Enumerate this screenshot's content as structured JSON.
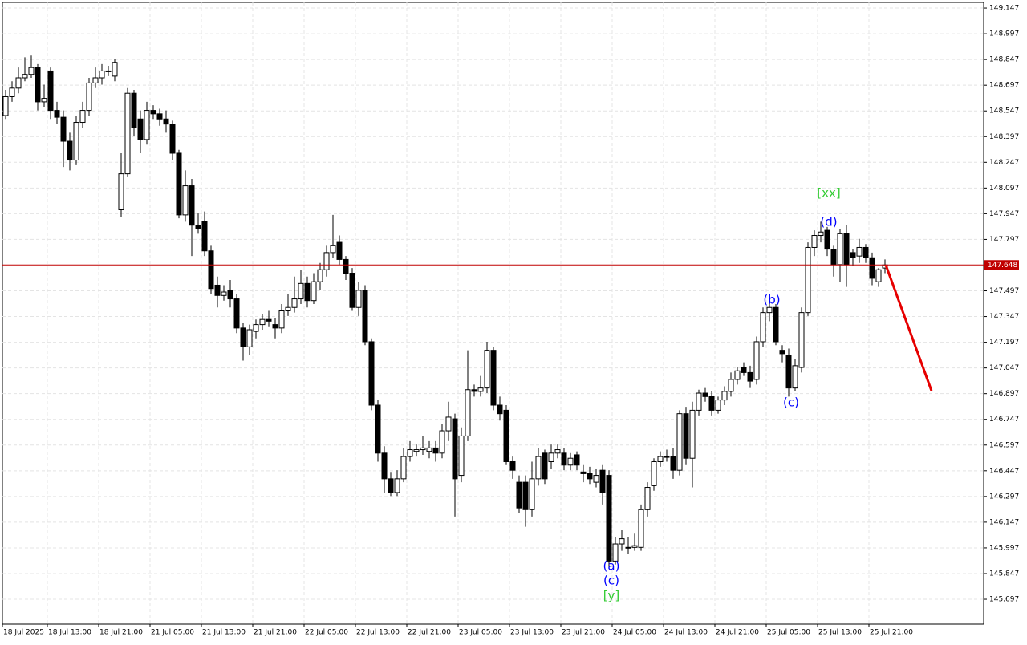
{
  "chart_data": {
    "type": "candlestick",
    "categories": [
      "18 Jul 2025",
      null,
      null,
      null,
      null,
      null,
      null,
      "18 Jul 13:00",
      null,
      null,
      null,
      null,
      null,
      null,
      null,
      "18 Jul 21:00",
      null,
      null,
      null,
      null,
      null,
      null,
      null,
      "21 Jul 05:00",
      null,
      null,
      null,
      null,
      null,
      null,
      null,
      "21 Jul 13:00",
      null,
      null,
      null,
      null,
      null,
      null,
      null,
      "21 Jul 21:00",
      null,
      null,
      null,
      null,
      null,
      null,
      null,
      "22 Jul 05:00",
      null,
      null,
      null,
      null,
      null,
      null,
      null,
      "22 Jul 13:00",
      null,
      null,
      null,
      null,
      null,
      null,
      null,
      "22 Jul 21:00",
      null,
      null,
      null,
      null,
      null,
      null,
      null,
      "23 Jul 05:00",
      null,
      null,
      null,
      null,
      null,
      null,
      null,
      "23 Jul 13:00",
      null,
      null,
      null,
      null,
      null,
      null,
      null,
      "23 Jul 21:00",
      null,
      null,
      null,
      null,
      null,
      null,
      null,
      "24 Jul 05:00",
      null,
      null,
      null,
      null,
      null,
      null,
      null,
      "24 Jul 13:00",
      null,
      null,
      null,
      null,
      null,
      null,
      null,
      "24 Jul 21:00",
      null,
      null,
      null,
      null,
      null,
      null,
      null,
      "25 Jul 05:00",
      null,
      null,
      null,
      null,
      null,
      null,
      null,
      "25 Jul 13:00",
      null,
      null,
      null,
      null,
      null,
      null,
      null,
      "25 Jul 21:00",
      null,
      null
    ],
    "open": [
      148.52,
      148.63,
      148.68,
      148.74,
      148.76,
      148.8,
      148.6,
      148.78,
      148.55,
      148.51,
      148.37,
      148.26,
      148.48,
      148.55,
      148.71,
      148.74,
      148.78,
      148.75,
      147.97,
      148.18,
      148.65,
      148.5,
      148.38,
      148.55,
      148.53,
      148.5,
      148.47,
      148.3,
      147.94,
      148.11,
      147.88,
      147.9,
      147.73,
      147.53,
      147.47,
      147.5,
      147.45,
      147.28,
      147.17,
      147.26,
      147.3,
      147.33,
      147.3,
      147.28,
      147.38,
      147.4,
      147.45,
      147.54,
      147.44,
      147.55,
      147.62,
      147.72,
      147.78,
      147.68,
      147.6,
      147.4,
      147.5,
      147.2,
      146.83,
      146.55,
      146.4,
      146.32,
      146.4,
      146.53,
      146.56,
      146.57,
      146.56,
      146.58,
      146.55,
      146.68,
      146.75,
      146.42,
      146.65,
      146.92,
      146.91,
      146.93,
      147.15,
      146.83,
      146.8,
      146.5,
      146.38,
      146.38,
      146.22,
      146.4,
      146.55,
      146.5,
      146.55,
      146.55,
      146.48,
      146.54,
      146.44,
      146.43,
      146.38,
      146.45,
      146.42,
      145.92,
      146.02,
      146.0,
      146.0,
      146.0,
      146.22,
      146.36,
      146.5,
      146.53,
      146.53,
      146.45,
      146.78,
      146.52,
      146.8,
      146.9,
      146.88,
      146.8,
      146.86,
      146.91,
      146.98,
      147.05,
      147.02,
      146.98,
      147.2,
      147.37,
      147.4,
      147.15,
      147.12,
      146.93,
      147.05,
      147.37,
      147.75,
      147.82,
      147.85,
      147.74,
      147.65,
      147.83,
      147.72,
      147.7,
      147.75,
      147.69,
      147.55,
      147.63
    ],
    "high": [
      148.67,
      148.72,
      148.8,
      148.86,
      148.87,
      148.82,
      148.7,
      148.8,
      148.6,
      148.55,
      148.42,
      148.52,
      148.6,
      148.74,
      148.8,
      148.82,
      148.81,
      148.85,
      148.3,
      148.68,
      148.67,
      148.55,
      148.6,
      148.58,
      148.56,
      148.55,
      148.49,
      148.32,
      148.2,
      148.15,
      147.95,
      147.96,
      147.76,
      147.58,
      147.53,
      147.56,
      147.48,
      147.31,
      147.3,
      147.33,
      147.36,
      147.38,
      147.34,
      147.42,
      147.48,
      147.58,
      147.62,
      147.58,
      147.6,
      147.66,
      147.76,
      147.94,
      147.82,
      147.7,
      147.63,
      147.55,
      147.53,
      147.22,
      146.86,
      146.59,
      146.44,
      146.45,
      146.58,
      146.62,
      146.6,
      146.65,
      146.62,
      146.62,
      146.72,
      146.85,
      146.78,
      146.7,
      147.15,
      146.95,
      147.0,
      147.2,
      147.17,
      146.88,
      146.83,
      146.53,
      146.42,
      146.42,
      146.5,
      146.58,
      146.57,
      146.6,
      146.6,
      146.58,
      146.55,
      146.56,
      146.48,
      146.47,
      146.46,
      146.48,
      146.45,
      146.06,
      146.1,
      146.06,
      146.08,
      146.25,
      146.38,
      146.52,
      146.56,
      146.57,
      146.58,
      146.8,
      146.82,
      146.85,
      146.92,
      146.93,
      146.91,
      146.88,
      146.94,
      147.02,
      147.05,
      147.08,
      147.06,
      147.23,
      147.4,
      147.45,
      147.42,
      147.18,
      147.16,
      147.1,
      147.4,
      147.78,
      147.85,
      147.9,
      147.87,
      147.76,
      147.86,
      147.88,
      147.74,
      147.8,
      147.77,
      147.72,
      147.63,
      147.68
    ],
    "low": [
      148.5,
      148.6,
      148.65,
      148.72,
      148.74,
      148.55,
      148.57,
      148.5,
      148.47,
      148.22,
      148.2,
      148.23,
      148.45,
      148.52,
      148.68,
      148.7,
      148.75,
      148.72,
      147.93,
      148.16,
      148.4,
      148.3,
      148.35,
      148.5,
      148.46,
      148.42,
      148.26,
      147.92,
      147.9,
      147.7,
      147.83,
      147.7,
      147.48,
      147.4,
      147.44,
      147.4,
      147.25,
      147.09,
      147.12,
      147.22,
      147.27,
      147.29,
      147.22,
      147.25,
      147.35,
      147.37,
      147.42,
      147.4,
      147.42,
      147.5,
      147.58,
      147.69,
      147.65,
      147.56,
      147.38,
      147.35,
      147.18,
      146.8,
      146.5,
      146.32,
      146.3,
      146.3,
      146.38,
      146.5,
      146.53,
      146.54,
      146.52,
      146.5,
      146.52,
      146.62,
      146.18,
      146.38,
      146.62,
      146.88,
      146.88,
      146.9,
      146.8,
      146.74,
      146.48,
      146.4,
      146.2,
      146.12,
      146.18,
      146.36,
      146.37,
      146.46,
      146.52,
      146.45,
      146.45,
      146.45,
      146.38,
      146.37,
      146.35,
      146.25,
      145.88,
      145.9,
      145.98,
      145.96,
      145.98,
      145.98,
      146.18,
      146.33,
      146.47,
      146.5,
      146.4,
      146.42,
      146.48,
      146.35,
      146.77,
      146.85,
      146.77,
      146.78,
      146.83,
      146.88,
      146.95,
      147.0,
      146.93,
      146.95,
      147.17,
      147.32,
      147.18,
      147.08,
      146.88,
      146.91,
      147.02,
      147.35,
      147.7,
      147.78,
      147.7,
      147.58,
      147.55,
      147.52,
      147.64,
      147.66,
      147.66,
      147.53,
      147.52,
      147.6
    ],
    "close": [
      148.63,
      148.68,
      148.74,
      148.76,
      148.8,
      148.6,
      148.62,
      148.55,
      148.51,
      148.37,
      148.26,
      148.48,
      148.55,
      148.71,
      148.74,
      148.78,
      148.78,
      148.83,
      148.18,
      148.65,
      148.45,
      148.38,
      148.55,
      148.53,
      148.5,
      148.47,
      148.3,
      147.94,
      148.11,
      147.88,
      147.86,
      147.73,
      147.51,
      147.47,
      147.49,
      147.45,
      147.28,
      147.17,
      147.27,
      147.3,
      147.33,
      147.32,
      147.28,
      147.38,
      147.4,
      147.45,
      147.54,
      147.44,
      147.55,
      147.62,
      147.72,
      147.76,
      147.68,
      147.6,
      147.4,
      147.5,
      147.2,
      146.83,
      146.55,
      146.4,
      146.32,
      146.4,
      146.53,
      146.57,
      146.57,
      146.58,
      146.58,
      146.55,
      146.68,
      146.76,
      146.4,
      146.65,
      146.92,
      146.91,
      146.93,
      147.15,
      146.83,
      146.78,
      146.5,
      146.45,
      146.23,
      146.22,
      146.4,
      146.53,
      146.4,
      146.55,
      146.57,
      146.48,
      146.52,
      146.48,
      146.43,
      146.4,
      146.42,
      146.32,
      145.92,
      146.02,
      146.05,
      146.0,
      146.01,
      146.22,
      146.35,
      146.5,
      146.53,
      146.53,
      146.45,
      146.78,
      146.52,
      146.8,
      146.9,
      146.88,
      146.8,
      146.86,
      146.91,
      146.98,
      147.03,
      147.02,
      146.97,
      147.2,
      147.37,
      147.4,
      147.2,
      147.13,
      146.93,
      147.06,
      147.37,
      147.75,
      147.82,
      147.84,
      147.74,
      147.65,
      147.83,
      147.65,
      147.69,
      147.75,
      147.69,
      147.57,
      147.62,
      147.648
    ],
    "ylim": [
      145.552,
      149.18
    ],
    "yticks": [
      149.147,
      148.997,
      148.847,
      148.697,
      148.547,
      148.397,
      148.247,
      148.097,
      147.947,
      147.797,
      147.497,
      147.347,
      147.197,
      147.047,
      146.897,
      146.747,
      146.597,
      146.447,
      146.297,
      146.147,
      145.997,
      145.847,
      145.697
    ],
    "grid": true,
    "bull_color": "#ffffff",
    "bear_color": "#000000",
    "wick_color": "#000000",
    "current_price": {
      "value": 147.648,
      "label": "147.648",
      "color": "#c00000"
    },
    "forecast": {
      "values": [
        147.648,
        146.914
      ],
      "color": "#e60000"
    },
    "annotations": [
      {
        "text": "[xx]",
        "color": "#33cc33"
      },
      {
        "text": "(d)",
        "color": "#0000ff"
      },
      {
        "text": "(b)",
        "color": "#0000ff"
      },
      {
        "text": "(c)",
        "color": "#0000ff"
      },
      {
        "text": "(a)",
        "color": "#0000ff"
      },
      {
        "text": "(c)",
        "color": "#0000ff"
      },
      {
        "text": "[y]",
        "color": "#33cc33"
      }
    ]
  }
}
